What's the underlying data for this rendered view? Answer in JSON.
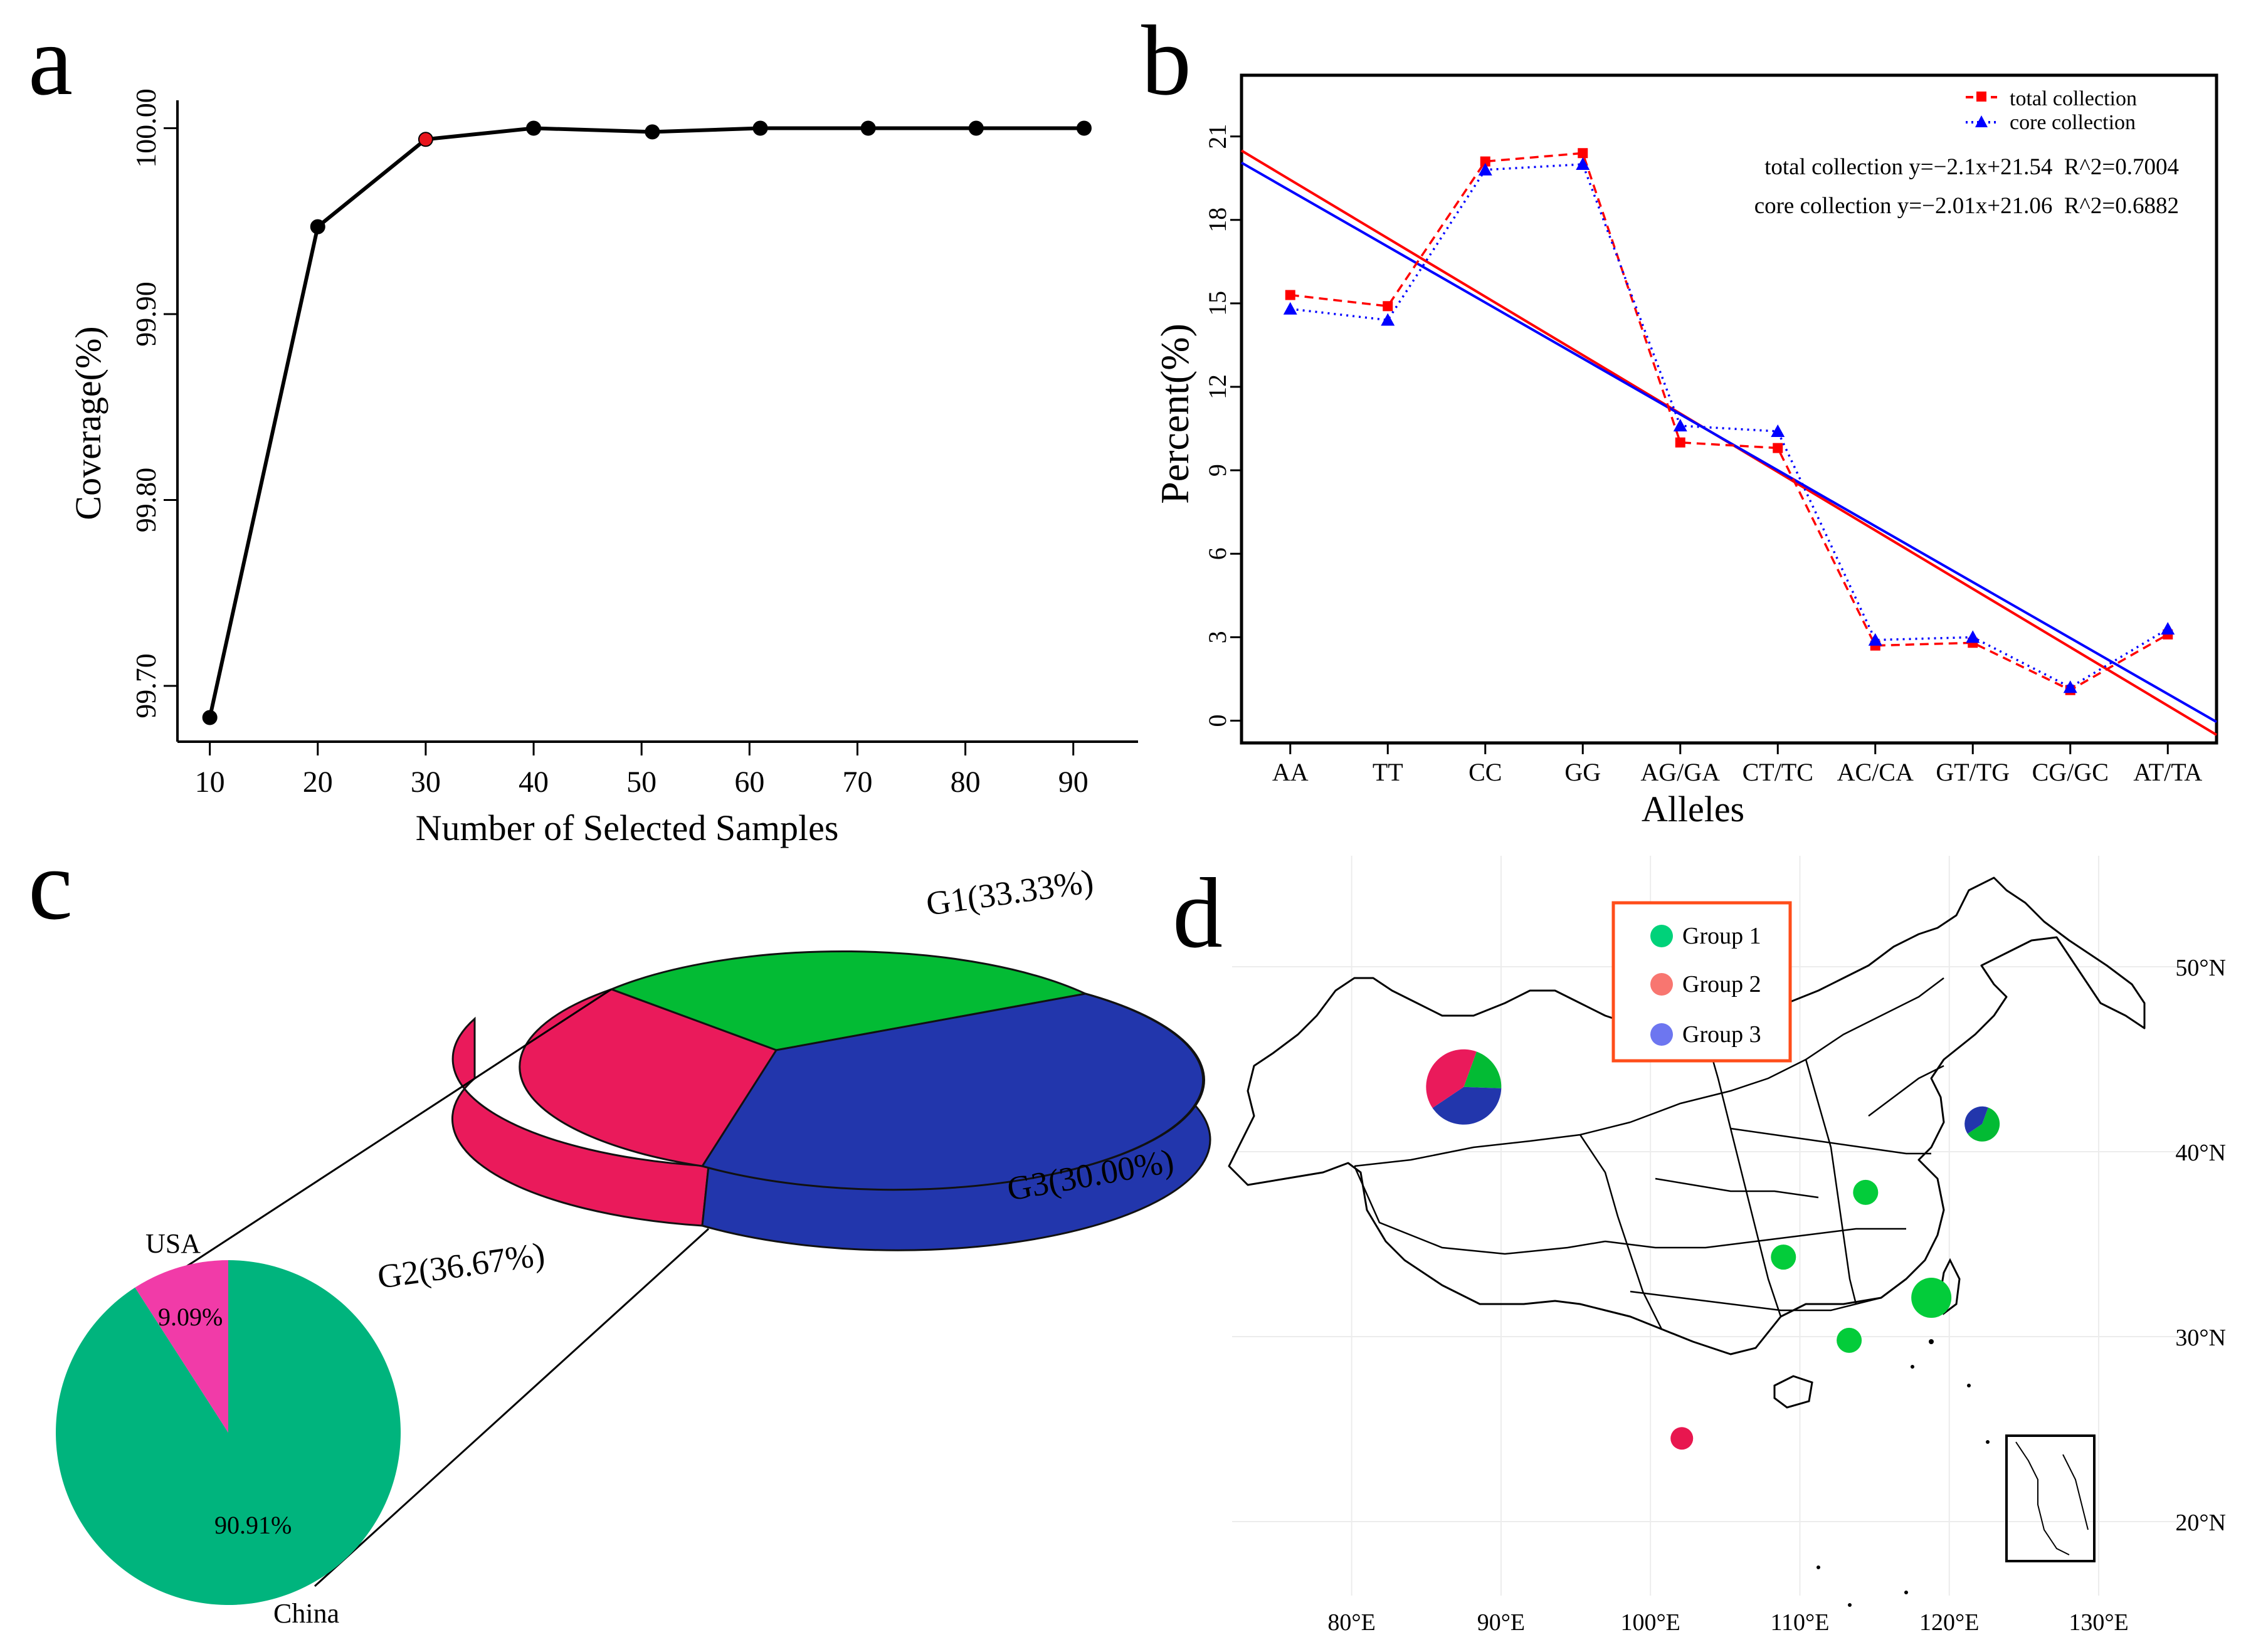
{
  "panels": {
    "a": "a",
    "b": "b",
    "c": "c",
    "d": "d"
  },
  "chart_data": [
    {
      "panel": "a",
      "type": "line",
      "xlabel": "Number of Selected Samples",
      "ylabel": "Coverage(%)",
      "x": [
        10,
        20,
        30,
        40,
        51,
        61,
        71,
        81,
        91
      ],
      "y": [
        99.683,
        99.947,
        99.994,
        100.0,
        99.998,
        100.0,
        100.0,
        100.0,
        100.0
      ],
      "highlight_index": 2,
      "highlight_color": "#e8141c",
      "line_color": "#000000",
      "xlim": [
        7,
        96
      ],
      "ylim": [
        99.67,
        100.015
      ],
      "xticks": [
        10,
        20,
        30,
        40,
        50,
        60,
        70,
        80,
        90
      ],
      "yticks": [
        {
          "v": 99.7,
          "label": "99.70"
        },
        {
          "v": 99.8,
          "label": "99.80"
        },
        {
          "v": 99.9,
          "label": "99.90"
        },
        {
          "v": 100.0,
          "label": "100.00"
        }
      ]
    },
    {
      "panel": "b",
      "type": "line",
      "xlabel": "Alleles",
      "ylabel": "Percent(%)",
      "categories": [
        "AA",
        "TT",
        "CC",
        "GG",
        "AG/GA",
        "CT/TC",
        "AC/CA",
        "GT/TG",
        "CG/GC",
        "AT/TA"
      ],
      "ylim": [
        -0.8,
        23.2
      ],
      "yticks": [
        0,
        3,
        6,
        9,
        12,
        15,
        18,
        21
      ],
      "series": [
        {
          "name": "total collection",
          "color": "#ff0000",
          "marker": "square",
          "values": [
            15.3,
            14.9,
            20.1,
            20.4,
            10.0,
            9.8,
            2.7,
            2.8,
            1.1,
            3.1
          ]
        },
        {
          "name": "core collection",
          "color": "#0000ff",
          "marker": "triangle",
          "values": [
            14.8,
            14.4,
            19.8,
            20.0,
            10.6,
            10.4,
            2.9,
            3.0,
            1.2,
            3.3
          ]
        }
      ],
      "regression": [
        {
          "name": "total collection",
          "color": "#ff0000",
          "slope": -2.1,
          "intercept": 21.54,
          "text": "total collection y=−2.1x+21.54  R^2=0.7004"
        },
        {
          "name": "core collection",
          "color": "#0000ff",
          "slope": -2.01,
          "intercept": 21.06,
          "text": "core collection y=−2.01x+21.06  R^2=0.6882"
        }
      ],
      "legend_position": "top-right"
    },
    {
      "panel": "c",
      "type": "pie",
      "title": "",
      "slices": [
        {
          "label": "China",
          "value": 90.91,
          "text": "90.91%",
          "color": "#00b47d"
        },
        {
          "label": "USA",
          "value": 9.09,
          "text": "9.09%",
          "color": "#f13ba8"
        }
      ],
      "subpie": {
        "type": "pie-3d",
        "slices": [
          {
            "label": "G1(33.33%)",
            "value": 33.33,
            "color": "#03bb34",
            "side_color": "#03bb34"
          },
          {
            "label": "G3(30.00%)",
            "value": 30.0,
            "color": "#2236ac",
            "side_color": "#2236ac"
          },
          {
            "label": "G2(36.67%)",
            "value": 36.67,
            "color": "#ea1a5b",
            "side_color": "#ea1a5b"
          }
        ]
      }
    },
    {
      "panel": "d",
      "type": "scatter",
      "subtype": "map",
      "legend": [
        {
          "label": "Group 1",
          "color": "#00d27a"
        },
        {
          "label": "Group 2",
          "color": "#f87670"
        },
        {
          "label": "Group 3",
          "color": "#6d76f0"
        }
      ],
      "legend_border_color": "#ff4d1a",
      "xticks": [
        {
          "v": 80,
          "label": "80°E"
        },
        {
          "v": 90,
          "label": "90°E"
        },
        {
          "v": 100,
          "label": "100°E"
        },
        {
          "v": 110,
          "label": "110°E"
        },
        {
          "v": 120,
          "label": "120°E"
        },
        {
          "v": 130,
          "label": "130°E"
        }
      ],
      "yticks": [
        {
          "v": 20,
          "label": "20°N"
        },
        {
          "v": 30,
          "label": "30°N"
        },
        {
          "v": 40,
          "label": "40°N"
        },
        {
          "v": 50,
          "label": "50°N"
        }
      ],
      "xlim": [
        72,
        136
      ],
      "ylim": [
        16,
        56
      ],
      "points": [
        {
          "lon": 87.5,
          "lat": 43.5,
          "type": "pie",
          "size": 3,
          "shares": [
            {
              "color": "#03bb34",
              "value": 20
            },
            {
              "color": "#2236ac",
              "value": 40
            },
            {
              "color": "#ea1a5b",
              "value": 40
            }
          ]
        },
        {
          "lon": 122.2,
          "lat": 41.5,
          "type": "pie",
          "size": 1.4,
          "shares": [
            {
              "color": "#03bb34",
              "value": 60
            },
            {
              "color": "#2236ac",
              "value": 40
            }
          ]
        },
        {
          "lon": 114.4,
          "lat": 37.8,
          "type": "dot",
          "size": 1,
          "color": "#03cc3a"
        },
        {
          "lon": 108.9,
          "lat": 34.3,
          "type": "dot",
          "size": 1,
          "color": "#03cc3a"
        },
        {
          "lon": 118.8,
          "lat": 32.1,
          "type": "dot",
          "size": 1.6,
          "color": "#03cc3a"
        },
        {
          "lon": 113.3,
          "lat": 29.8,
          "type": "dot",
          "size": 1,
          "color": "#03cc3a"
        },
        {
          "lon": 102.1,
          "lat": 24.5,
          "type": "dot",
          "size": 0.9,
          "color": "#e8174f"
        }
      ]
    }
  ]
}
